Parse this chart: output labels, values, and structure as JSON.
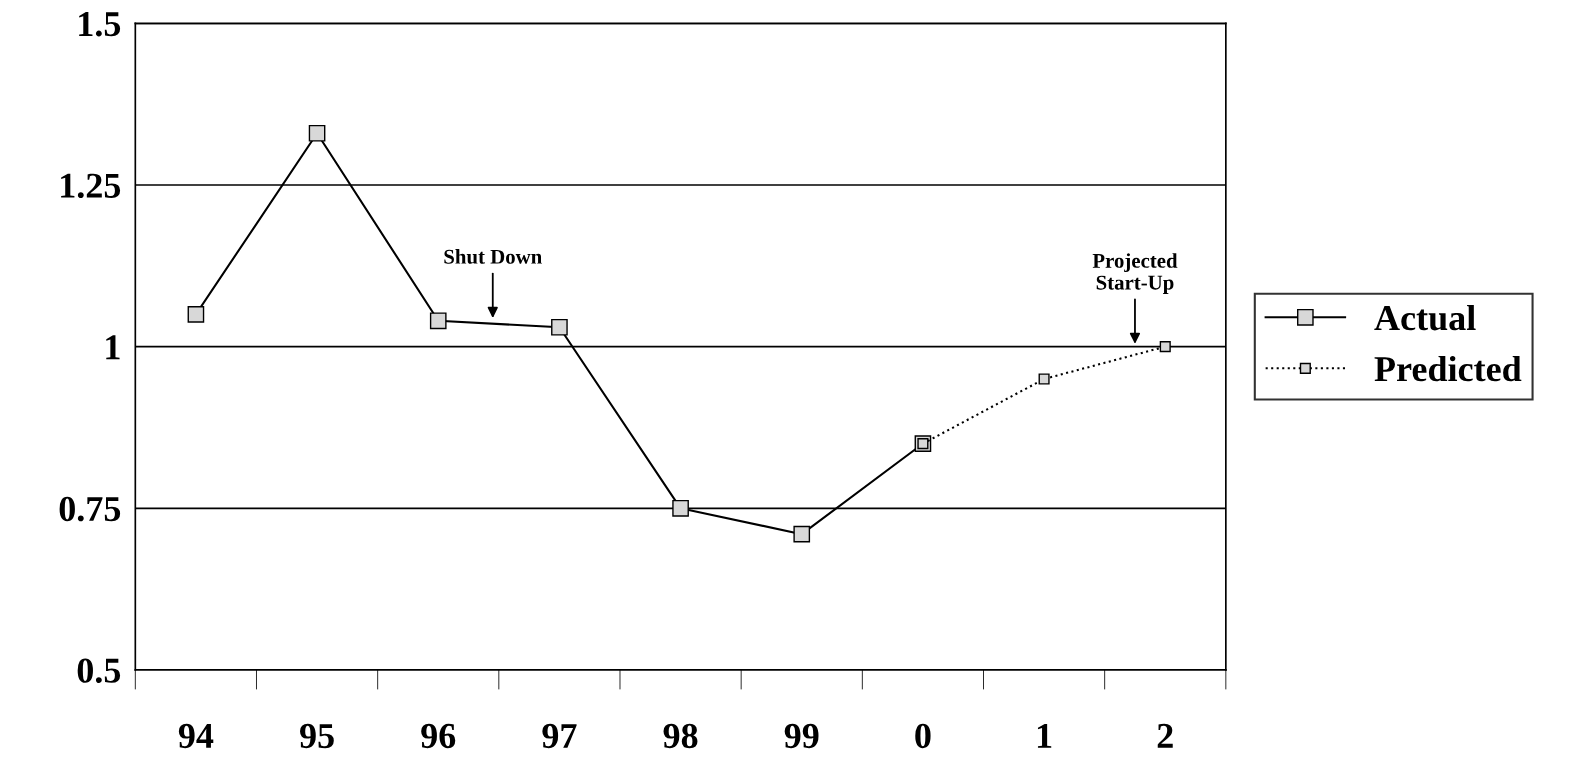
{
  "chart_data": {
    "type": "line",
    "categories": [
      "94",
      "95",
      "96",
      "97",
      "98",
      "99",
      "0",
      "1",
      "2"
    ],
    "series": [
      {
        "name": "Actual",
        "color": "#000000",
        "marker": "square",
        "line_style": "solid",
        "values": [
          1.05,
          1.33,
          1.04,
          1.03,
          0.75,
          0.71,
          0.85,
          null,
          null
        ]
      },
      {
        "name": "Predicted",
        "color": "#000000",
        "marker": "square",
        "line_style": "dotted",
        "values": [
          null,
          null,
          null,
          null,
          null,
          null,
          0.85,
          0.95,
          1.0
        ]
      }
    ],
    "ylim": [
      0.5,
      1.5
    ],
    "yticks": [
      0.5,
      0.75,
      1,
      1.25,
      1.5
    ],
    "grid": "y",
    "legend": "right",
    "annotations": [
      {
        "text": "Shut Down",
        "x": "96",
        "y": 1.04
      },
      {
        "text": "Projected\nStart-Up",
        "x": "2",
        "y": 1.0
      }
    ]
  }
}
